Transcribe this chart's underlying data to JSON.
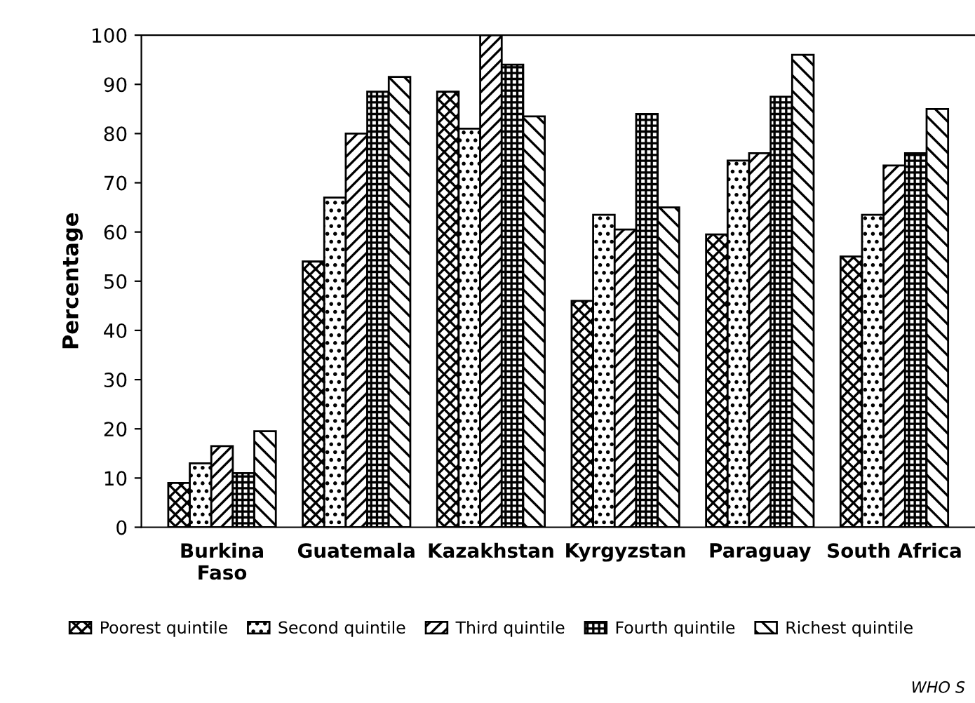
{
  "chart_data": {
    "type": "bar",
    "ylabel": "Percentage",
    "categories": [
      "Burkina\nFaso",
      "Guatemala",
      "Kazakhstan",
      "Kyrgyzstan",
      "Paraguay",
      "South Africa"
    ],
    "series": [
      {
        "name": "Poorest quintile",
        "color": "#000000",
        "values": [
          9,
          54,
          88.5,
          46,
          59.5,
          55
        ]
      },
      {
        "name": "Second quintile",
        "color": "#000000",
        "values": [
          13,
          67,
          81,
          63.5,
          74.5,
          63.5
        ]
      },
      {
        "name": "Third quintile",
        "color": "#000000",
        "values": [
          16.5,
          80,
          100,
          60.5,
          76,
          73.5
        ]
      },
      {
        "name": "Fourth quintile",
        "color": "#000000",
        "values": [
          11,
          88.5,
          94,
          84,
          87.5,
          76
        ]
      },
      {
        "name": "Richest quintile",
        "color": "#000000",
        "values": [
          19.5,
          91.5,
          83.5,
          65,
          96,
          85
        ]
      }
    ],
    "ylim": [
      0,
      100
    ],
    "yticks": [
      0,
      10,
      20,
      30,
      40,
      50,
      60,
      70,
      80,
      90,
      100
    ],
    "grid": false,
    "legend": "bottom",
    "annotations": [
      "WHO S"
    ]
  }
}
